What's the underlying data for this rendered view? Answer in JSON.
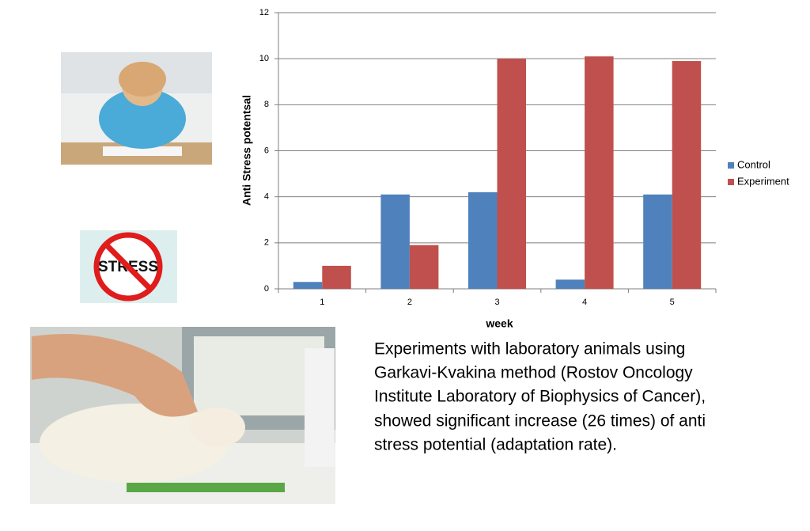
{
  "chart_data": {
    "type": "bar",
    "categories": [
      "1",
      "2",
      "3",
      "4",
      "5"
    ],
    "series": [
      {
        "name": "Control",
        "color": "#4f81bd",
        "values": [
          0.3,
          4.1,
          4.2,
          0.4,
          4.1
        ]
      },
      {
        "name": "Experiment",
        "color": "#c0504d",
        "values": [
          1.0,
          1.9,
          10.0,
          10.1,
          9.9
        ]
      }
    ],
    "ylim": [
      0,
      12
    ],
    "yticks": [
      0,
      2,
      4,
      6,
      8,
      10,
      12
    ],
    "grid": true,
    "xlabel": "week",
    "ylabel": "Anti Stress potentsal",
    "legend": "right"
  },
  "caption": [
    "Experiments with laboratory animals using",
    "Garkavi-Kvakina method (Rostov Oncology",
    "Institute Laboratory of  Biophysics of Cancer),",
    "showed significant increase (26 times) of anti",
    "stress potential (adaptation rate)."
  ],
  "stress_sign": "STRESS"
}
